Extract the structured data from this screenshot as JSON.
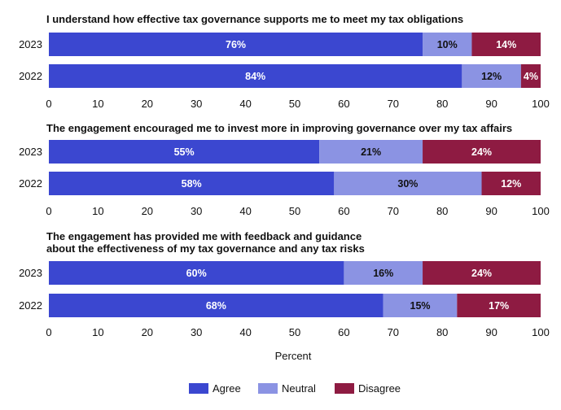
{
  "chart_data": {
    "type": "bar",
    "orientation": "horizontal",
    "stacked": true,
    "xlabel": "Percent",
    "xlim": [
      0,
      100
    ],
    "xticks": [
      0,
      10,
      20,
      30,
      40,
      50,
      60,
      70,
      80,
      90,
      100
    ],
    "colors": {
      "Agree": "#3b47d0",
      "Neutral": "#8b93e3",
      "Disagree": "#8e1b42"
    },
    "label_colors": {
      "Agree": "#ffffff",
      "Neutral": "#111111",
      "Disagree": "#ffffff"
    },
    "legend": {
      "position": "bottom-center",
      "entries": [
        "Agree",
        "Neutral",
        "Disagree"
      ]
    },
    "panels": [
      {
        "title": [
          "I understand how effective tax governance supports me to meet my tax obligations"
        ],
        "categories": [
          "2023",
          "2022"
        ],
        "series": [
          {
            "name": "Agree",
            "values": [
              76,
              84
            ],
            "labels": [
              "76%",
              "84%"
            ]
          },
          {
            "name": "Neutral",
            "values": [
              10,
              12
            ],
            "labels": [
              "10%",
              "12%"
            ]
          },
          {
            "name": "Disagree",
            "values": [
              14,
              4
            ],
            "labels": [
              "14%",
              "4%"
            ]
          }
        ]
      },
      {
        "title": [
          "The engagement encouraged me to invest more in improving governance over my tax affairs"
        ],
        "categories": [
          "2023",
          "2022"
        ],
        "series": [
          {
            "name": "Agree",
            "values": [
              55,
              58
            ],
            "labels": [
              "55%",
              "58%"
            ]
          },
          {
            "name": "Neutral",
            "values": [
              21,
              30
            ],
            "labels": [
              "21%",
              "30%"
            ]
          },
          {
            "name": "Disagree",
            "values": [
              24,
              12
            ],
            "labels": [
              "24%",
              "12%"
            ]
          }
        ]
      },
      {
        "title": [
          "The engagement has provided me with feedback and guidance",
          "about the effectiveness of my tax governance and any tax risks"
        ],
        "categories": [
          "2023",
          "2022"
        ],
        "series": [
          {
            "name": "Agree",
            "values": [
              60,
              68
            ],
            "labels": [
              "60%",
              "68%"
            ]
          },
          {
            "name": "Neutral",
            "values": [
              16,
              15
            ],
            "labels": [
              "16%",
              "15%"
            ]
          },
          {
            "name": "Disagree",
            "values": [
              24,
              17
            ],
            "labels": [
              "24%",
              "17%"
            ]
          }
        ]
      }
    ]
  }
}
